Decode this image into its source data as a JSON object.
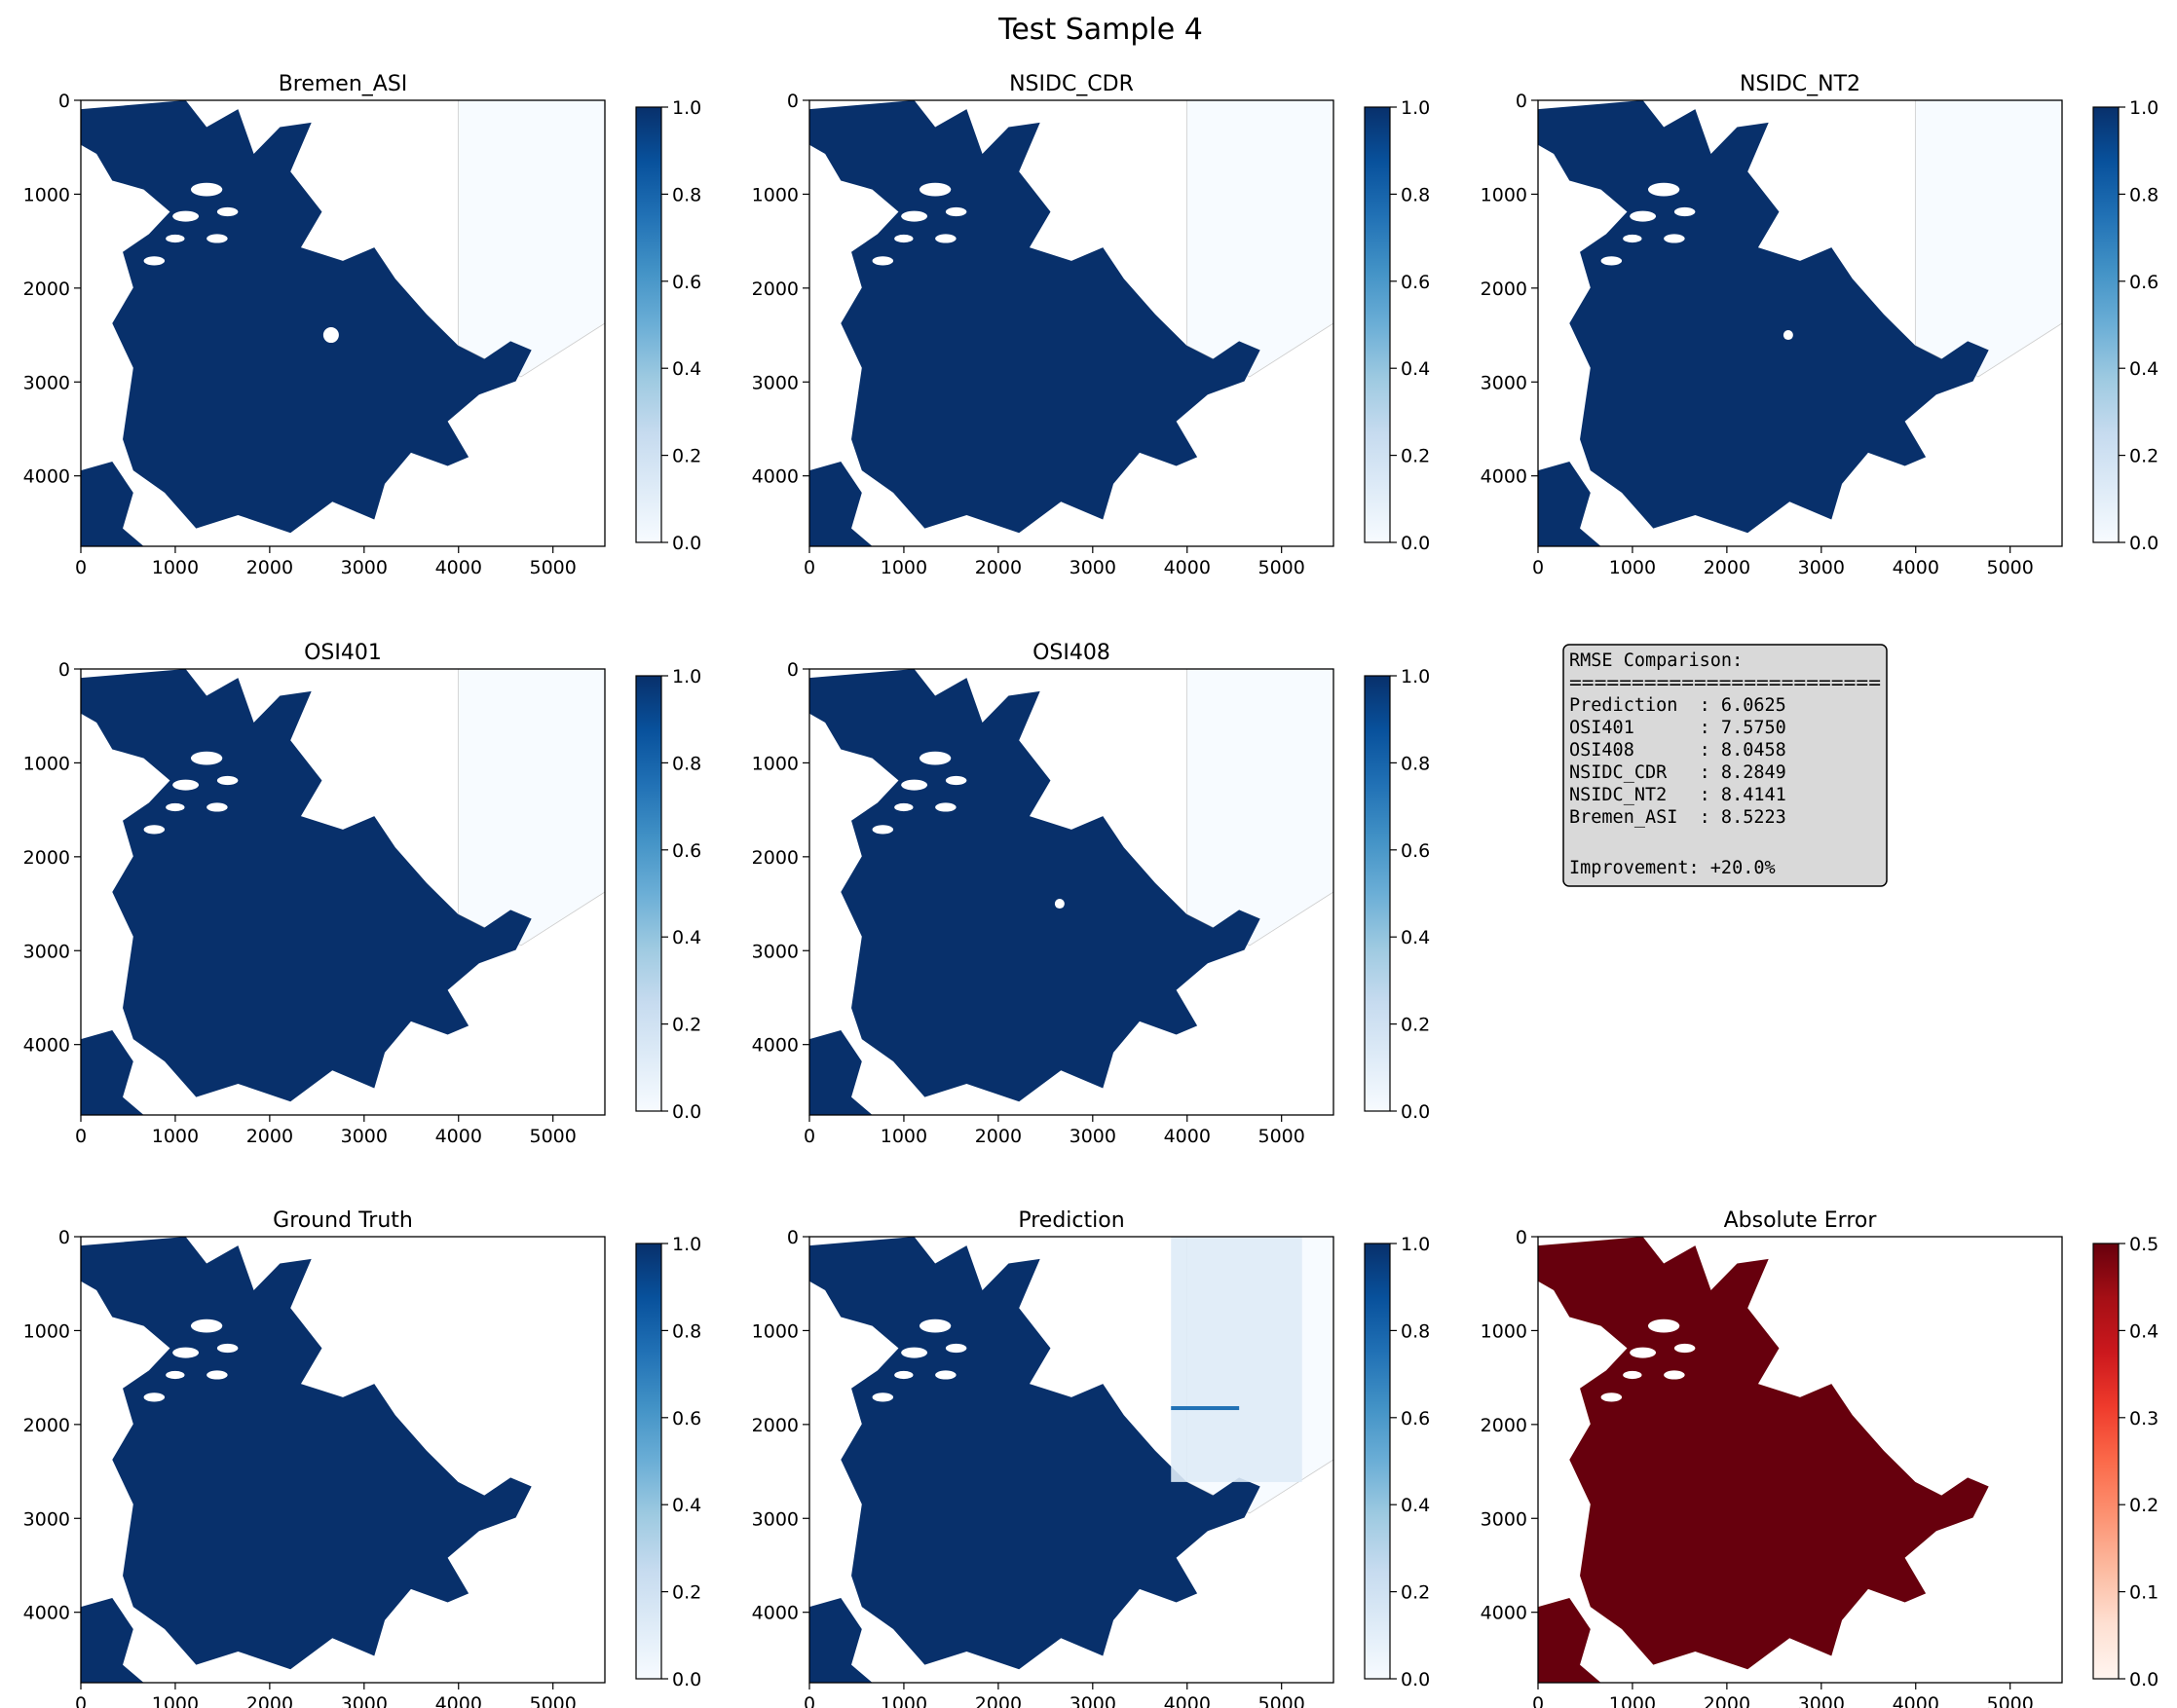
{
  "figure": {
    "suptitle": "Test Sample 4"
  },
  "colors": {
    "blues_low": "#f7fbff",
    "blues_high": "#08306b",
    "reds_low": "#fff5f0",
    "reds_high": "#67000d",
    "infobox_bg": "#d9d9d9"
  },
  "chart_data": [
    {
      "type": "heatmap",
      "title": "Bremen_ASI",
      "cmap": "Blues",
      "xlim": [
        0,
        5550
      ],
      "ylim": [
        4750,
        0
      ],
      "xticks": [
        0,
        1000,
        2000,
        3000,
        4000,
        5000
      ],
      "yticks": [
        0,
        1000,
        2000,
        3000,
        4000
      ],
      "colorbar": {
        "range": [
          0.0,
          1.0
        ],
        "ticks": [
          "0.0",
          "0.2",
          "0.4",
          "0.6",
          "0.8",
          "1.0"
        ]
      }
    },
    {
      "type": "heatmap",
      "title": "NSIDC_CDR",
      "cmap": "Blues",
      "xlim": [
        0,
        5550
      ],
      "ylim": [
        4750,
        0
      ],
      "xticks": [
        0,
        1000,
        2000,
        3000,
        4000,
        5000
      ],
      "yticks": [
        0,
        1000,
        2000,
        3000,
        4000
      ],
      "colorbar": {
        "range": [
          0.0,
          1.0
        ],
        "ticks": [
          "0.0",
          "0.2",
          "0.4",
          "0.6",
          "0.8",
          "1.0"
        ]
      }
    },
    {
      "type": "heatmap",
      "title": "NSIDC_NT2",
      "cmap": "Blues",
      "xlim": [
        0,
        5550
      ],
      "ylim": [
        4750,
        0
      ],
      "xticks": [
        0,
        1000,
        2000,
        3000,
        4000,
        5000
      ],
      "yticks": [
        0,
        1000,
        2000,
        3000,
        4000
      ],
      "colorbar": {
        "range": [
          0.0,
          1.0
        ],
        "ticks": [
          "0.0",
          "0.2",
          "0.4",
          "0.6",
          "0.8",
          "1.0"
        ]
      }
    },
    {
      "type": "heatmap",
      "title": "OSI401",
      "cmap": "Blues",
      "xlim": [
        0,
        5550
      ],
      "ylim": [
        4750,
        0
      ],
      "xticks": [
        0,
        1000,
        2000,
        3000,
        4000,
        5000
      ],
      "yticks": [
        0,
        1000,
        2000,
        3000,
        4000
      ],
      "colorbar": {
        "range": [
          0.0,
          1.0
        ],
        "ticks": [
          "0.0",
          "0.2",
          "0.4",
          "0.6",
          "0.8",
          "1.0"
        ]
      }
    },
    {
      "type": "heatmap",
      "title": "OSI408",
      "cmap": "Blues",
      "xlim": [
        0,
        5550
      ],
      "ylim": [
        4750,
        0
      ],
      "xticks": [
        0,
        1000,
        2000,
        3000,
        4000,
        5000
      ],
      "yticks": [
        0,
        1000,
        2000,
        3000,
        4000
      ],
      "colorbar": {
        "range": [
          0.0,
          1.0
        ],
        "ticks": [
          "0.0",
          "0.2",
          "0.4",
          "0.6",
          "0.8",
          "1.0"
        ]
      }
    },
    {
      "type": "table",
      "title": "",
      "lines": [
        "RMSE Comparison:",
        "=========================",
        "Prediction  : 6.0625",
        "OSI401      : 7.5750",
        "OSI408      : 8.0458",
        "NSIDC_CDR   : 8.2849",
        "NSIDC_NT2   : 8.4141",
        "Bremen_ASI  : 8.5223",
        "",
        "Improvement: +20.0%"
      ],
      "rmse": [
        {
          "name": "Prediction",
          "value": 6.0625
        },
        {
          "name": "OSI401",
          "value": 7.575
        },
        {
          "name": "OSI408",
          "value": 8.0458
        },
        {
          "name": "NSIDC_CDR",
          "value": 8.2849
        },
        {
          "name": "NSIDC_NT2",
          "value": 8.4141
        },
        {
          "name": "Bremen_ASI",
          "value": 8.5223
        }
      ],
      "improvement": "+20.0%"
    },
    {
      "type": "heatmap",
      "title": "Ground Truth",
      "cmap": "Blues",
      "xlim": [
        0,
        5550
      ],
      "ylim": [
        4750,
        0
      ],
      "xticks": [
        0,
        1000,
        2000,
        3000,
        4000,
        5000
      ],
      "yticks": [
        0,
        1000,
        2000,
        3000,
        4000
      ],
      "colorbar": {
        "range": [
          0.0,
          1.0
        ],
        "ticks": [
          "0.0",
          "0.2",
          "0.4",
          "0.6",
          "0.8",
          "1.0"
        ]
      }
    },
    {
      "type": "heatmap",
      "title": "Prediction",
      "cmap": "Blues",
      "xlim": [
        0,
        5550
      ],
      "ylim": [
        4750,
        0
      ],
      "xticks": [
        0,
        1000,
        2000,
        3000,
        4000,
        5000
      ],
      "yticks": [
        0,
        1000,
        2000,
        3000,
        4000
      ],
      "colorbar": {
        "range": [
          0.0,
          1.0
        ],
        "ticks": [
          "0.0",
          "0.2",
          "0.4",
          "0.6",
          "0.8",
          "1.0"
        ]
      }
    },
    {
      "type": "heatmap",
      "title": "Absolute Error",
      "cmap": "Reds",
      "xlim": [
        0,
        5550
      ],
      "ylim": [
        4750,
        0
      ],
      "xticks": [
        0,
        1000,
        2000,
        3000,
        4000,
        5000
      ],
      "yticks": [
        0,
        1000,
        2000,
        3000,
        4000
      ],
      "colorbar": {
        "range": [
          0.0,
          0.5
        ],
        "ticks": [
          "0.0",
          "0.1",
          "0.2",
          "0.3",
          "0.4",
          "0.5"
        ]
      }
    }
  ]
}
